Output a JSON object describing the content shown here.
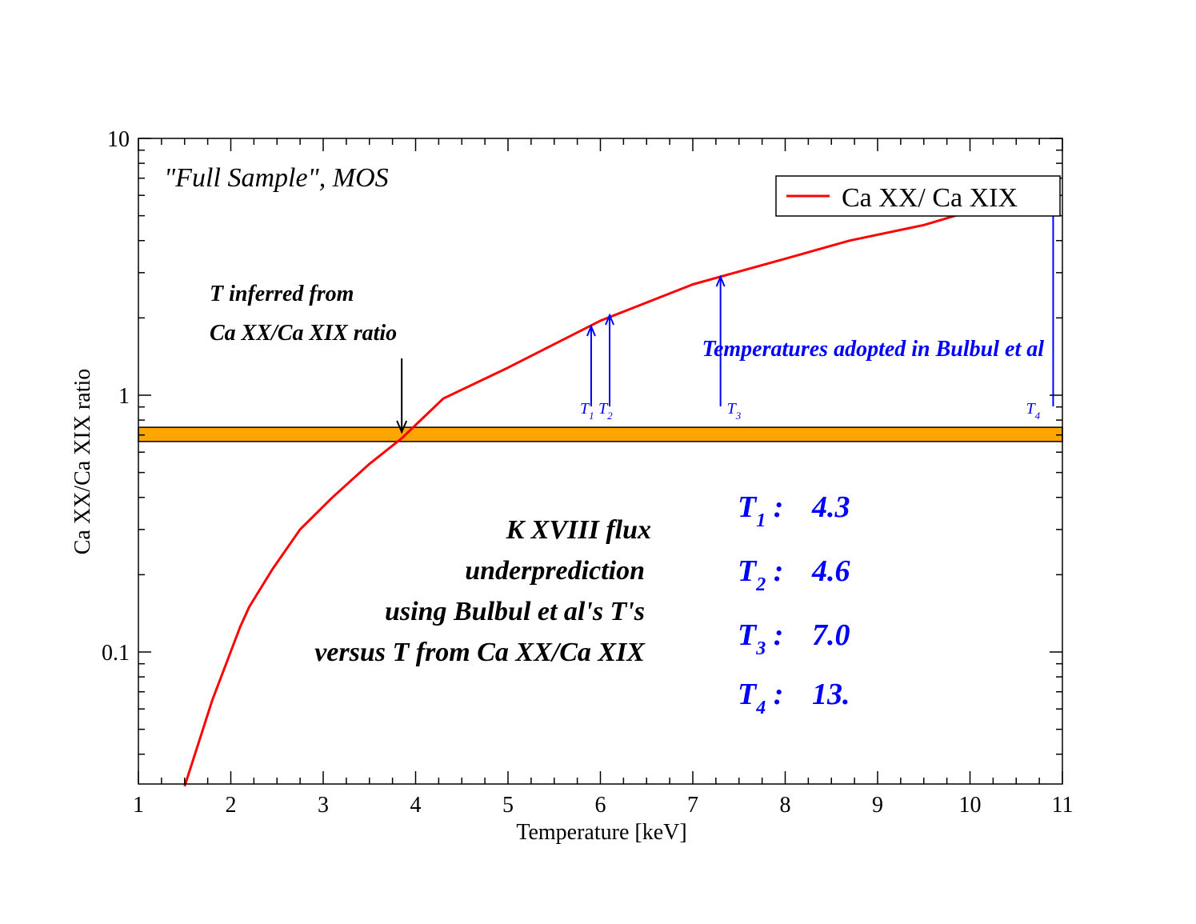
{
  "chart_data": {
    "type": "line",
    "title": "",
    "xlabel": "Temperature [keV]",
    "ylabel": "Ca XX/Ca XIX ratio",
    "xlim": [
      1,
      11
    ],
    "ylim": [
      0.03,
      10
    ],
    "yscale": "log",
    "x_ticks": [
      1,
      2,
      3,
      4,
      5,
      6,
      7,
      8,
      9,
      10,
      11
    ],
    "x_tick_labels": [
      "1",
      "2",
      "3",
      "4",
      "5",
      "6",
      "7",
      "8",
      "9",
      "10",
      "11"
    ],
    "y_ticks": [
      0.1,
      1,
      10
    ],
    "y_tick_labels": [
      "0.1",
      "1",
      "10"
    ],
    "series": [
      {
        "name": "Ca XX/ Ca XIX",
        "color": "#ff0000",
        "x": [
          1.5,
          1.8,
          2.1,
          2.2,
          2.45,
          2.75,
          3.1,
          3.5,
          3.85,
          4.3,
          5.0,
          6.0,
          7.0,
          8.0,
          8.7,
          9.5,
          10.0
        ],
        "y": [
          0.03,
          0.065,
          0.125,
          0.15,
          0.21,
          0.3,
          0.4,
          0.54,
          0.68,
          0.97,
          1.28,
          1.95,
          2.7,
          3.4,
          4.0,
          4.6,
          5.2
        ]
      }
    ],
    "band": {
      "y_low": 0.66,
      "y_high": 0.75,
      "color": "#ffa500"
    },
    "annotations": {
      "sample_label": "\"Full Sample\", MOS",
      "inferred_line1": "T inferred from",
      "inferred_line2": "Ca XX/Ca XIX ratio",
      "inferred_arrow_x": 3.85,
      "adopted_label": "Temperatures adopted in Bulbul et al",
      "flux_lines": [
        "K XVIII flux",
        "underprediction",
        "using Bulbul et al's T's",
        "versus T from Ca XX/Ca XIX"
      ],
      "adopted_temps": [
        {
          "label": "T",
          "sub": "1",
          "x": 5.9,
          "value": "4.3"
        },
        {
          "label": "T",
          "sub": "2",
          "x": 6.1,
          "value": "4.6"
        },
        {
          "label": "T",
          "sub": "3",
          "x": 7.3,
          "value": "7.0"
        },
        {
          "label": "T",
          "sub": "4",
          "x": 10.9,
          "value": "13."
        }
      ]
    },
    "legend": "top-right",
    "colors": {
      "curve": "#ff0000",
      "band": "#ffa500",
      "arrows": "#0000ff",
      "text": "#000000"
    }
  }
}
